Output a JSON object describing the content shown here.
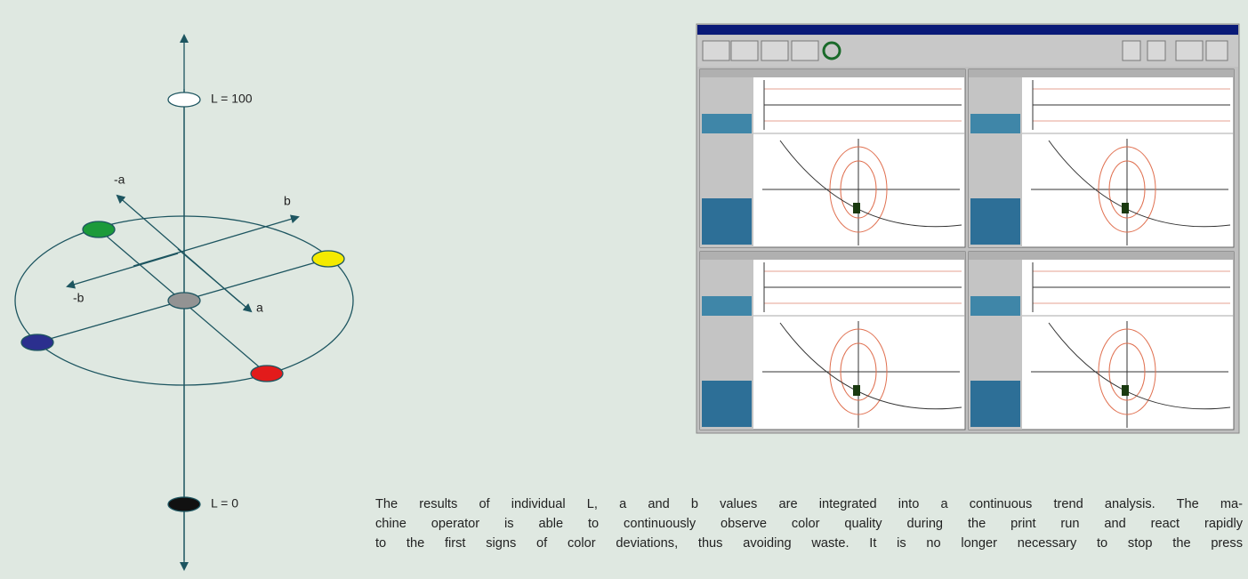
{
  "diagram": {
    "labels": {
      "l100": "L = 100",
      "neg_a": "-a",
      "pos_b": "b",
      "neg_b": "-b",
      "pos_a": "a",
      "l0": "L = 0"
    }
  },
  "paragraph": {
    "lines": [
      "The results of individual L, a and b values are integrated into a continuous trend analysis. The ma-",
      "chine operator is able to continuously observe color quality during the print run and react rapidly",
      "to the first signs of color deviations, thus avoiding waste. It is no longer necessary to stop the press"
    ]
  }
}
